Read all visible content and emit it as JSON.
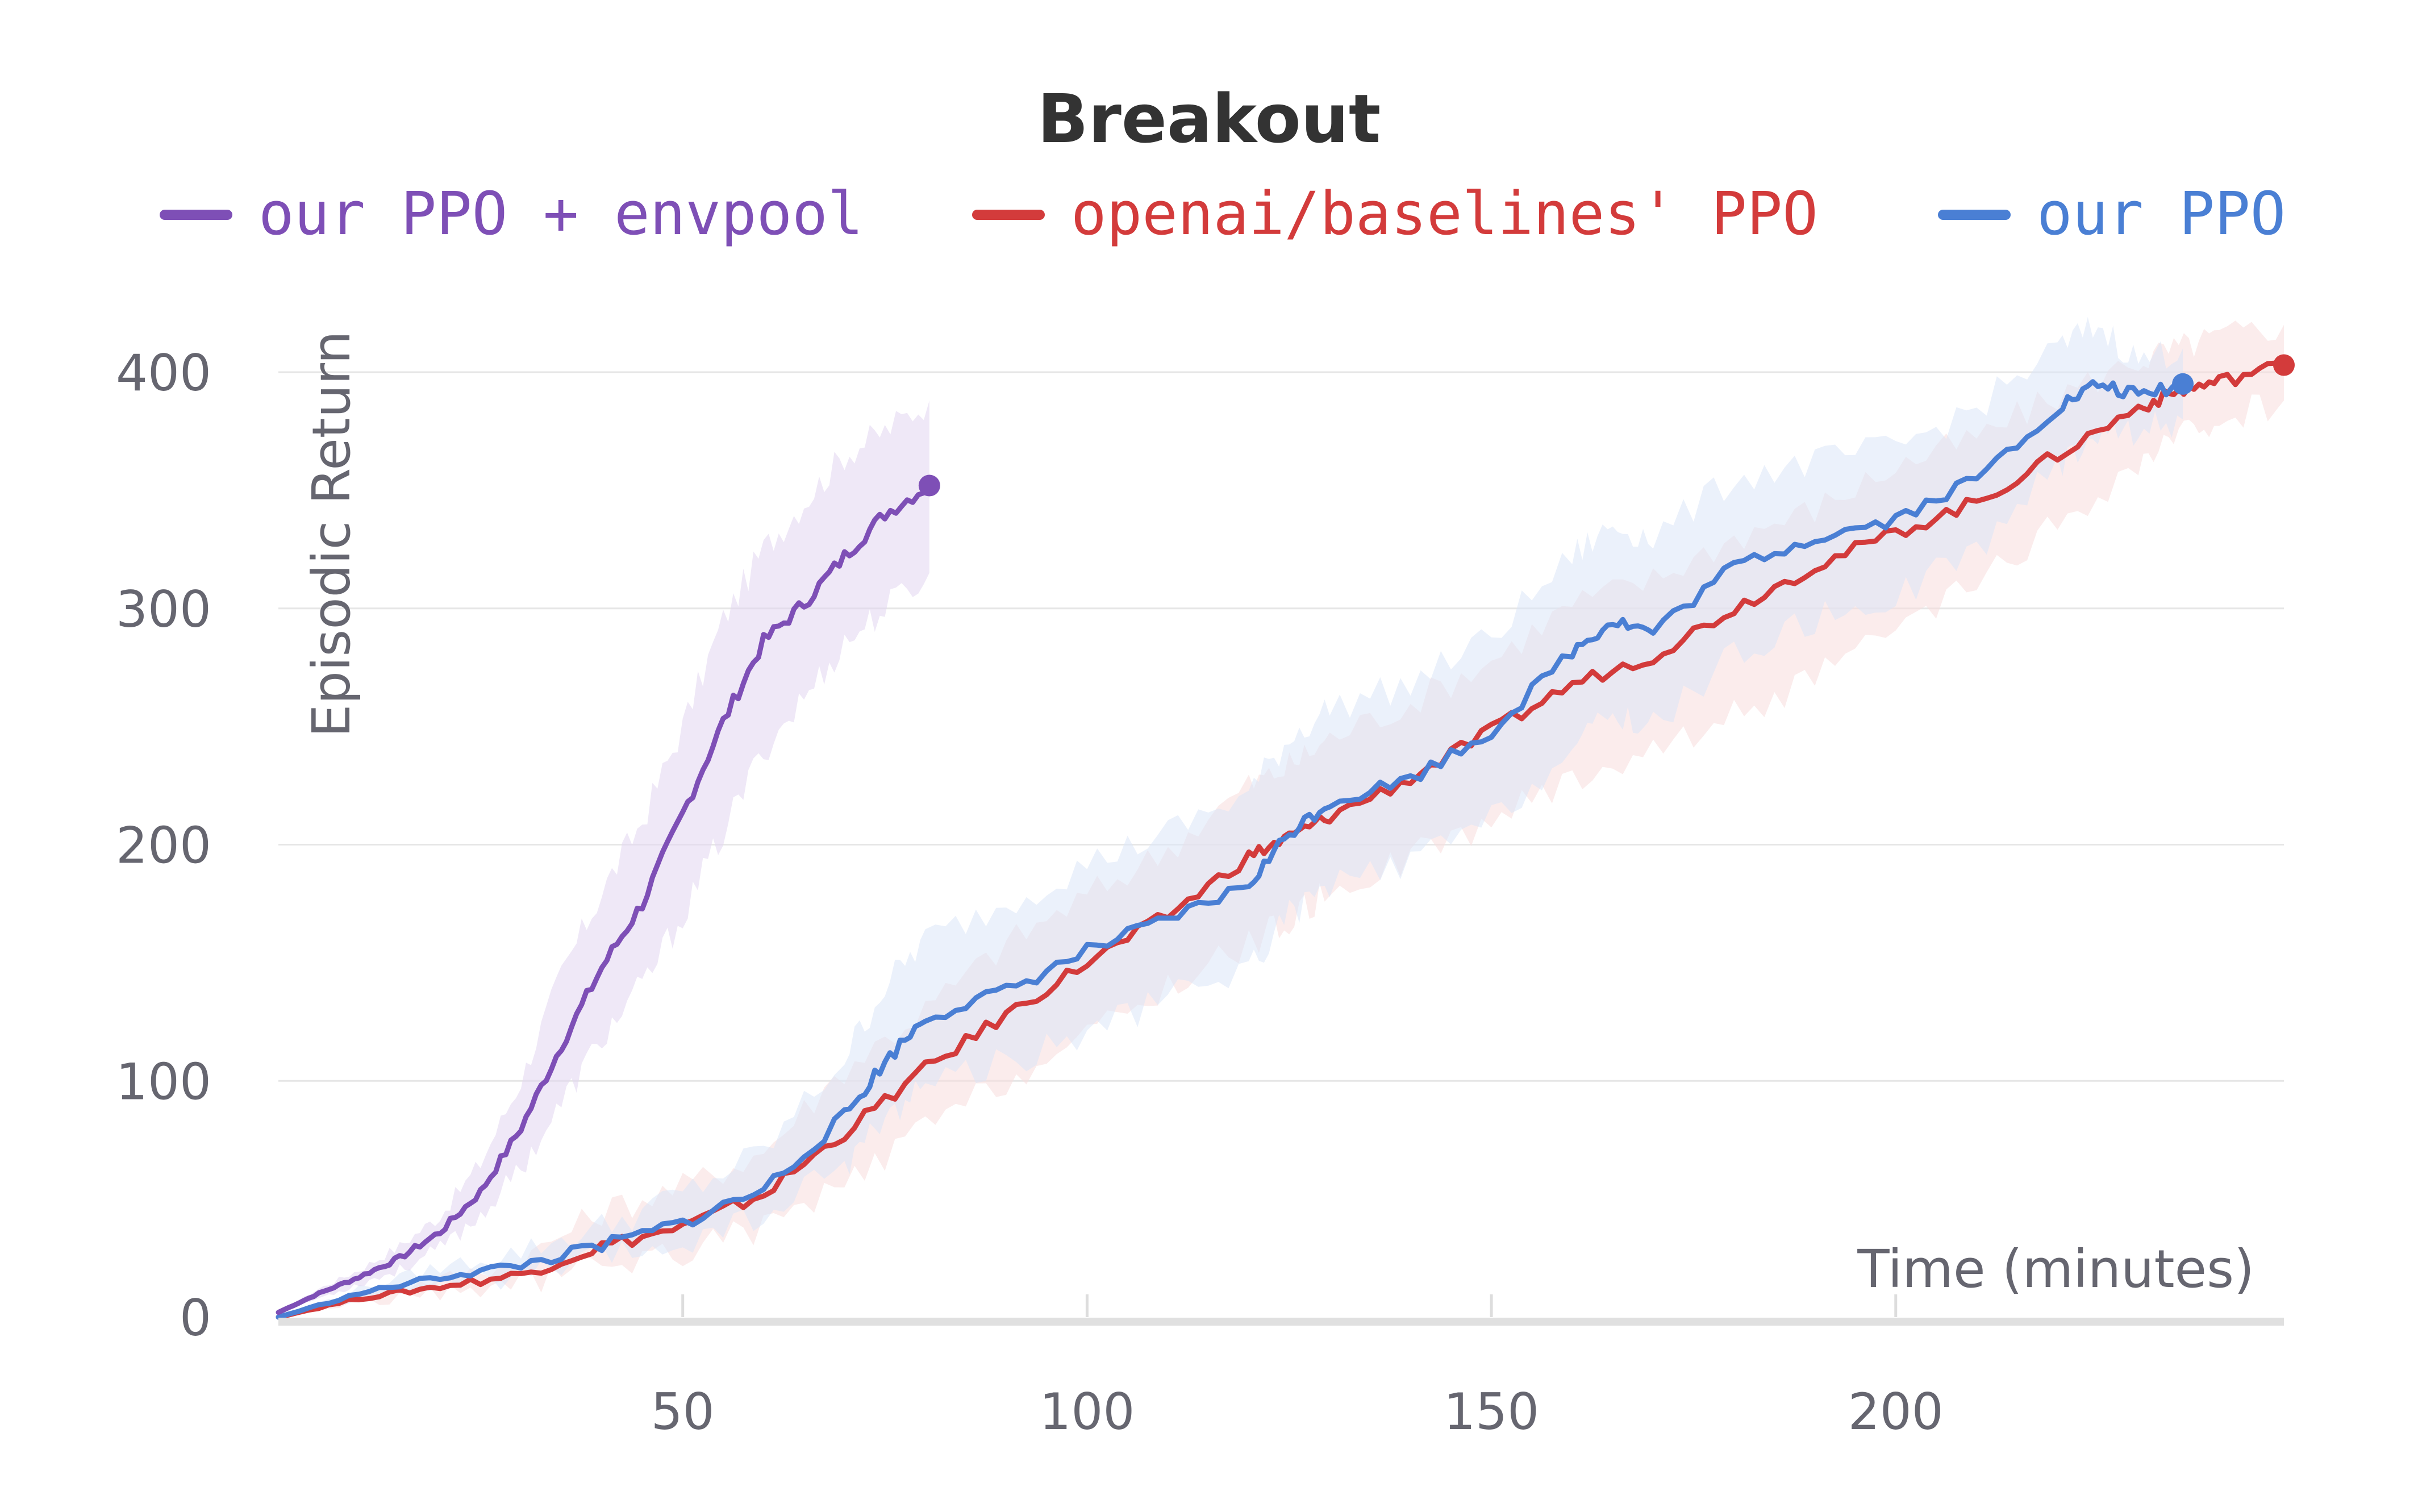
{
  "chart_data": {
    "type": "line",
    "title": "Breakout",
    "xlabel": "Time (minutes)",
    "ylabel": "Episodic Return",
    "xlim": [
      0,
      248
    ],
    "ylim": [
      0,
      400
    ],
    "xticks": [
      50,
      100,
      150,
      200
    ],
    "yticks": [
      0,
      100,
      200,
      300,
      400
    ],
    "grid": "horizontal",
    "legend_position": "top",
    "series": [
      {
        "name": "our PPO + envpool",
        "color": "#7e4fb6",
        "band_color": "#e2d6f0",
        "x": [
          0,
          5,
          10,
          15,
          20,
          25,
          30,
          35,
          40,
          45,
          50,
          55,
          60,
          65,
          70,
          75,
          80.5
        ],
        "y": [
          2,
          10,
          17,
          25,
          36,
          53,
          80,
          115,
          148,
          175,
          213,
          252,
          286,
          302,
          322,
          340,
          352
        ],
        "lower": [
          2,
          8,
          14,
          20,
          29,
          43,
          63,
          90,
          118,
          140,
          170,
          205,
          240,
          262,
          285,
          300,
          315
        ],
        "upper": [
          2,
          12,
          20,
          30,
          43,
          65,
          100,
          145,
          180,
          210,
          250,
          295,
          325,
          345,
          365,
          375,
          388
        ]
      },
      {
        "name": "openai/baselines' PPO",
        "color": "#d33b3b",
        "band_color": "#f8dcdc",
        "x": [
          0,
          10,
          20,
          30,
          40,
          50,
          60,
          70,
          80,
          90,
          100,
          110,
          120,
          125,
          130,
          140,
          150,
          160,
          170,
          180,
          190,
          200,
          210,
          220,
          230,
          235,
          240,
          248
        ],
        "y": [
          0,
          8,
          13,
          18,
          30,
          38,
          52,
          78,
          105,
          128,
          150,
          170,
          195,
          203,
          212,
          228,
          248,
          268,
          280,
          300,
          318,
          332,
          345,
          365,
          385,
          392,
          396,
          403
        ],
        "lower": [
          0,
          6,
          10,
          14,
          22,
          28,
          38,
          55,
          80,
          100,
          118,
          140,
          158,
          168,
          180,
          195,
          210,
          228,
          240,
          255,
          270,
          290,
          310,
          335,
          360,
          372,
          380,
          388
        ],
        "upper": [
          0,
          10,
          16,
          24,
          45,
          55,
          70,
          105,
          130,
          158,
          178,
          198,
          225,
          233,
          245,
          260,
          278,
          302,
          312,
          330,
          342,
          360,
          372,
          390,
          405,
          410,
          415,
          420
        ]
      },
      {
        "name": "our PPO",
        "color": "#4a7fd4",
        "band_color": "#dbe6f8",
        "x": [
          0,
          10,
          20,
          30,
          40,
          50,
          60,
          70,
          75,
          80,
          90,
          100,
          110,
          120,
          125,
          130,
          140,
          150,
          160,
          165,
          170,
          180,
          190,
          200,
          210,
          220,
          225,
          230,
          235.5
        ],
        "y": [
          0,
          10,
          17,
          22,
          30,
          40,
          54,
          85,
          108,
          127,
          138,
          155,
          168,
          183,
          205,
          218,
          228,
          248,
          282,
          295,
          290,
          318,
          330,
          338,
          355,
          385,
          395,
          390,
          395
        ],
        "lower": [
          0,
          8,
          13,
          17,
          24,
          31,
          42,
          65,
          84,
          100,
          108,
          120,
          135,
          148,
          170,
          182,
          192,
          210,
          240,
          255,
          250,
          280,
          295,
          305,
          325,
          360,
          375,
          375,
          380
        ],
        "upper": [
          0,
          12,
          21,
          28,
          38,
          52,
          70,
          110,
          140,
          160,
          175,
          192,
          205,
          222,
          245,
          258,
          268,
          288,
          322,
          335,
          330,
          355,
          362,
          368,
          385,
          410,
          420,
          405,
          410
        ]
      }
    ]
  }
}
